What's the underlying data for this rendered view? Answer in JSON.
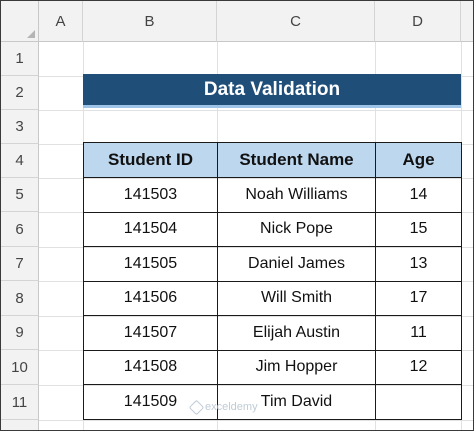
{
  "columns": [
    "A",
    "B",
    "C",
    "D"
  ],
  "rows": [
    "1",
    "2",
    "3",
    "4",
    "5",
    "6",
    "7",
    "8",
    "9",
    "10",
    "11"
  ],
  "title": "Data Validation",
  "table": {
    "headers": [
      "Student ID",
      "Student Name",
      "Age"
    ],
    "rows": [
      [
        "141503",
        "Noah Williams",
        "14"
      ],
      [
        "141504",
        "Nick Pope",
        "15"
      ],
      [
        "141505",
        "Daniel James",
        "13"
      ],
      [
        "141506",
        "Will Smith",
        "17"
      ],
      [
        "141507",
        "Elijah Austin",
        "11"
      ],
      [
        "141508",
        "Jim Hopper",
        "12"
      ],
      [
        "141509",
        "Tim David",
        ""
      ]
    ]
  },
  "watermark": "exceldemy",
  "colors": {
    "title_bg": "#1f4e79",
    "header_bg": "#bdd7ee",
    "title_underline": "#9dc3e6"
  }
}
